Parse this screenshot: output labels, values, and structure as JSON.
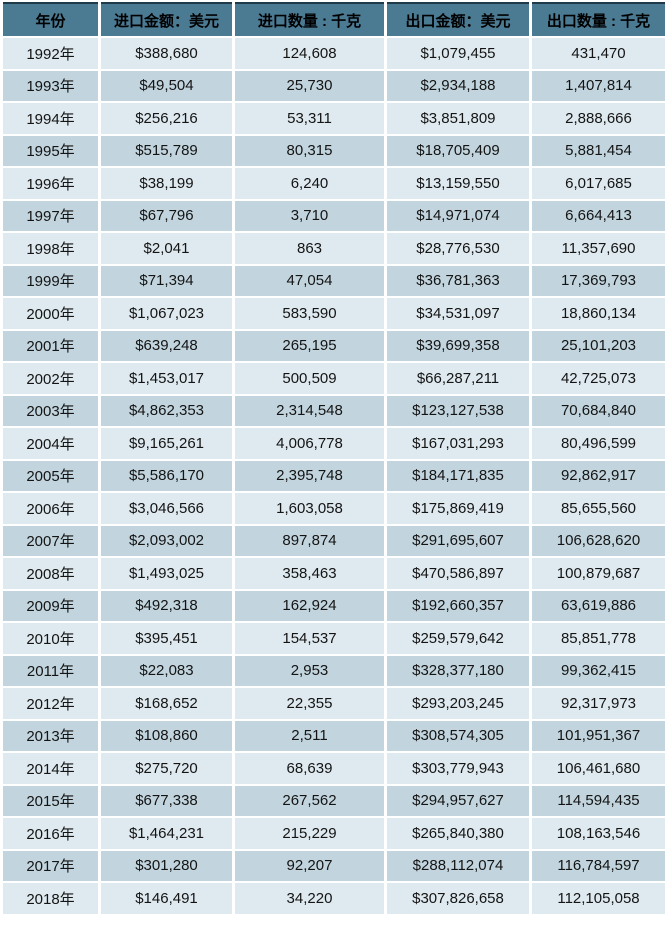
{
  "chart_data": {
    "type": "table",
    "title": "",
    "columns": [
      "年份",
      "进口金额：美元",
      "进口数量 : 千克",
      "出口金额：美元",
      "出口数量 : 千克"
    ],
    "rows": [
      [
        "1992年",
        "$388,680",
        "124,608",
        "$1,079,455",
        "431,470"
      ],
      [
        "1993年",
        "$49,504",
        "25,730",
        "$2,934,188",
        "1,407,814"
      ],
      [
        "1994年",
        "$256,216",
        "53,311",
        "$3,851,809",
        "2,888,666"
      ],
      [
        "1995年",
        "$515,789",
        "80,315",
        "$18,705,409",
        "5,881,454"
      ],
      [
        "1996年",
        "$38,199",
        "6,240",
        "$13,159,550",
        "6,017,685"
      ],
      [
        "1997年",
        "$67,796",
        "3,710",
        "$14,971,074",
        "6,664,413"
      ],
      [
        "1998年",
        "$2,041",
        "863",
        "$28,776,530",
        "11,357,690"
      ],
      [
        "1999年",
        "$71,394",
        "47,054",
        "$36,781,363",
        "17,369,793"
      ],
      [
        "2000年",
        "$1,067,023",
        "583,590",
        "$34,531,097",
        "18,860,134"
      ],
      [
        "2001年",
        "$639,248",
        "265,195",
        "$39,699,358",
        "25,101,203"
      ],
      [
        "2002年",
        "$1,453,017",
        "500,509",
        "$66,287,211",
        "42,725,073"
      ],
      [
        "2003年",
        "$4,862,353",
        "2,314,548",
        "$123,127,538",
        "70,684,840"
      ],
      [
        "2004年",
        "$9,165,261",
        "4,006,778",
        "$167,031,293",
        "80,496,599"
      ],
      [
        "2005年",
        "$5,586,170",
        "2,395,748",
        "$184,171,835",
        "92,862,917"
      ],
      [
        "2006年",
        "$3,046,566",
        "1,603,058",
        "$175,869,419",
        "85,655,560"
      ],
      [
        "2007年",
        "$2,093,002",
        "897,874",
        "$291,695,607",
        "106,628,620"
      ],
      [
        "2008年",
        "$1,493,025",
        "358,463",
        "$470,586,897",
        "100,879,687"
      ],
      [
        "2009年",
        "$492,318",
        "162,924",
        "$192,660,357",
        "63,619,886"
      ],
      [
        "2010年",
        "$395,451",
        "154,537",
        "$259,579,642",
        "85,851,778"
      ],
      [
        "2011年",
        "$22,083",
        "2,953",
        "$328,377,180",
        "99,362,415"
      ],
      [
        "2012年",
        "$168,652",
        "22,355",
        "$293,203,245",
        "92,317,973"
      ],
      [
        "2013年",
        "$108,860",
        "2,511",
        "$308,574,305",
        "101,951,367"
      ],
      [
        "2014年",
        "$275,720",
        "68,639",
        "$303,779,943",
        "106,461,680"
      ],
      [
        "2015年",
        "$677,338",
        "267,562",
        "$294,957,627",
        "114,594,435"
      ],
      [
        "2016年",
        "$1,464,231",
        "215,229",
        "$265,840,380",
        "108,163,546"
      ],
      [
        "2017年",
        "$301,280",
        "92,207",
        "$288,112,074",
        "116,784,597"
      ],
      [
        "2018年",
        "$146,491",
        "34,220",
        "$307,826,658",
        "112,105,058"
      ]
    ]
  },
  "colors": {
    "header_bg": "#4b7a93",
    "header_top_border": "#1f3b49",
    "row_light": "#dfeaf0",
    "row_dark": "#c2d5de",
    "grid": "#ffffff",
    "text": "#141414"
  }
}
